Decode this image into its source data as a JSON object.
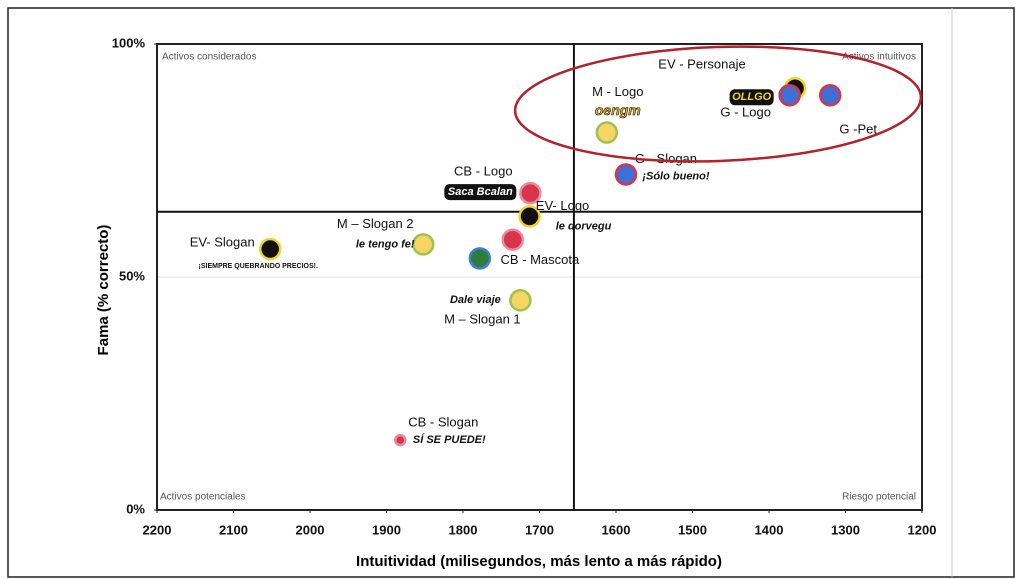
{
  "chart_data": {
    "type": "scatter",
    "x_label": "Intuitividad (milisegundos, más lento a más rápido)",
    "y_label": "Fama (% correcto)",
    "xlim": [
      2200,
      1200
    ],
    "xticks": [
      2200,
      2100,
      2000,
      1900,
      1800,
      1700,
      1600,
      1500,
      1400,
      1300,
      1200
    ],
    "ylim": [
      0,
      100
    ],
    "yticks": [
      {
        "value": 0,
        "label": "0%"
      },
      {
        "value": 50,
        "label": "50%"
      },
      {
        "value": 100,
        "label": "100%"
      }
    ],
    "grid": true,
    "dividers": {
      "x": 1655,
      "y": 64
    },
    "quadrants": [
      "Activos considerados",
      "Activos intuitivos",
      "Activos potenciales",
      "Riesgo potencial"
    ],
    "points": [
      {
        "name": "EV- Slogan",
        "logo": "¡SIEMPRE QUEBRANDO PRECIOS!.",
        "x": 2052,
        "y": 56,
        "color": "#111111",
        "ring": "#f2d32a"
      },
      {
        "name": "M – Slogan 2",
        "logo": "le tengo fe!",
        "x": 1852,
        "y": 57,
        "color": "#f7d463",
        "ring": "#9bc44a"
      },
      {
        "name": "CB - Logo",
        "logo": "Saca Bcalan",
        "x": 1712,
        "y": 68,
        "color": "#d8344a",
        "ring": "#e98a9a"
      },
      {
        "name": "EV- Logo",
        "logo": "le dorvegu",
        "x": 1713,
        "y": 63,
        "color": "#111111",
        "ring": "#f2d32a"
      },
      {
        "x": 1735,
        "y": 58,
        "color": "#d8344a",
        "ring": "#e98a9a"
      },
      {
        "name": "CB - Mascota",
        "x": 1778,
        "y": 54,
        "color": "#2f7d3a",
        "ring": "#3d7fd6"
      },
      {
        "name": "M – Slogan 1",
        "logo": "Dale viaje",
        "x": 1725,
        "y": 45,
        "color": "#f7d463",
        "ring": "#9bc44a"
      },
      {
        "name": "CB - Slogan",
        "logo": "SÍ SE PUEDE!",
        "x": 1882,
        "y": 15,
        "color": "#d8344a",
        "ring": "#e98a9a"
      },
      {
        "name": "M - Logo",
        "logo": "oengm",
        "x": 1612,
        "y": 81,
        "color": "#f7d463",
        "ring": "#9bc44a"
      },
      {
        "name": "G - Slogan",
        "logo": "¡Sólo bueno!",
        "x": 1587,
        "y": 72,
        "color": "#3d6fd6",
        "ring": "#d8344a"
      },
      {
        "name": "EV - Personaje",
        "x": 1366,
        "y": 90.5,
        "color": "#111111",
        "ring": "#f2d32a"
      },
      {
        "name": "G - Logo",
        "logo": "OLLGO",
        "x": 1373,
        "y": 89,
        "color": "#3d6fd6",
        "ring": "#d8344a"
      },
      {
        "name": "G -Pet",
        "x": 1320,
        "y": 89,
        "color": "#3d6fd6",
        "ring": "#d8344a"
      }
    ]
  }
}
